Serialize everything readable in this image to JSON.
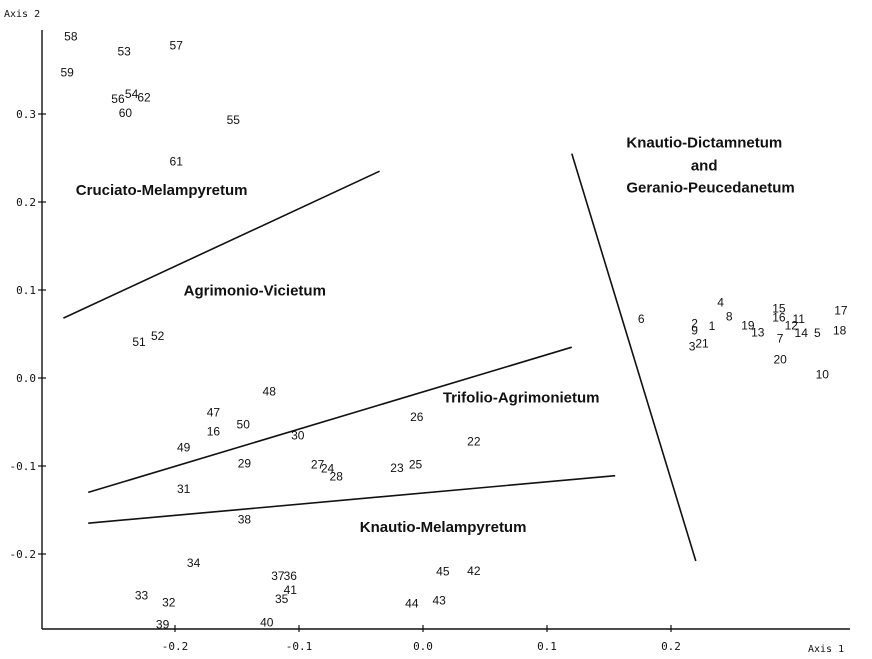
{
  "chart_data": {
    "type": "scatter",
    "xlabel": "Axis 1",
    "ylabel": "Axis 2",
    "xlim": [
      -0.305,
      0.345
    ],
    "ylim": [
      -0.287,
      0.39
    ],
    "grid": false,
    "x_ticks": [
      {
        "value": -0.2,
        "label": "-0.2"
      },
      {
        "value": -0.1,
        "label": "-0.1"
      },
      {
        "value": 0.0,
        "label": "0.0"
      },
      {
        "value": 0.1,
        "label": "0.1"
      },
      {
        "value": 0.2,
        "label": "0.2"
      }
    ],
    "y_ticks": [
      {
        "value": 0.3,
        "label": "0.3"
      },
      {
        "value": 0.2,
        "label": "0.2"
      },
      {
        "value": 0.1,
        "label": "0.1"
      },
      {
        "value": 0.0,
        "label": "0.0"
      },
      {
        "value": -0.1,
        "label": "-0.1"
      },
      {
        "value": -0.2,
        "label": "-0.2"
      }
    ],
    "points": [
      {
        "label": "58",
        "x": -0.284,
        "y": 0.387
      },
      {
        "label": "53",
        "x": -0.241,
        "y": 0.37
      },
      {
        "label": "57",
        "x": -0.199,
        "y": 0.377
      },
      {
        "label": "59",
        "x": -0.287,
        "y": 0.346
      },
      {
        "label": "54",
        "x": -0.235,
        "y": 0.322
      },
      {
        "label": "56",
        "x": -0.246,
        "y": 0.316
      },
      {
        "label": "62",
        "x": -0.225,
        "y": 0.318
      },
      {
        "label": "60",
        "x": -0.24,
        "y": 0.3
      },
      {
        "label": "55",
        "x": -0.153,
        "y": 0.292
      },
      {
        "label": "61",
        "x": -0.199,
        "y": 0.245
      },
      {
        "label": "51",
        "x": -0.229,
        "y": 0.04
      },
      {
        "label": "52",
        "x": -0.214,
        "y": 0.047
      },
      {
        "label": "48",
        "x": -0.124,
        "y": -0.016
      },
      {
        "label": "47",
        "x": -0.169,
        "y": -0.04
      },
      {
        "label": "16",
        "x": -0.169,
        "y": -0.062
      },
      {
        "label": "50",
        "x": -0.145,
        "y": -0.054
      },
      {
        "label": "30",
        "x": -0.101,
        "y": -0.066
      },
      {
        "label": "26",
        "x": -0.005,
        "y": -0.045
      },
      {
        "label": "22",
        "x": 0.041,
        "y": -0.073
      },
      {
        "label": "49",
        "x": -0.193,
        "y": -0.08
      },
      {
        "label": "29",
        "x": -0.144,
        "y": -0.098
      },
      {
        "label": "27",
        "x": -0.085,
        "y": -0.099
      },
      {
        "label": "24",
        "x": -0.077,
        "y": -0.104
      },
      {
        "label": "28",
        "x": -0.07,
        "y": -0.113
      },
      {
        "label": "23",
        "x": -0.021,
        "y": -0.103
      },
      {
        "label": "25",
        "x": -0.006,
        "y": -0.099
      },
      {
        "label": "31",
        "x": -0.193,
        "y": -0.127
      },
      {
        "label": "38",
        "x": -0.144,
        "y": -0.162
      },
      {
        "label": "34",
        "x": -0.185,
        "y": -0.211
      },
      {
        "label": "37",
        "x": -0.117,
        "y": -0.226
      },
      {
        "label": "36",
        "x": -0.107,
        "y": -0.226
      },
      {
        "label": "41",
        "x": -0.107,
        "y": -0.242
      },
      {
        "label": "35",
        "x": -0.114,
        "y": -0.252
      },
      {
        "label": "45",
        "x": 0.016,
        "y": -0.221
      },
      {
        "label": "42",
        "x": 0.041,
        "y": -0.22
      },
      {
        "label": "44",
        "x": -0.009,
        "y": -0.257
      },
      {
        "label": "43",
        "x": 0.013,
        "y": -0.254
      },
      {
        "label": "33",
        "x": -0.227,
        "y": -0.248
      },
      {
        "label": "32",
        "x": -0.205,
        "y": -0.256
      },
      {
        "label": "39",
        "x": -0.21,
        "y": -0.281
      },
      {
        "label": "40",
        "x": -0.126,
        "y": -0.279
      },
      {
        "label": "6",
        "x": 0.176,
        "y": 0.066
      },
      {
        "label": "4",
        "x": 0.24,
        "y": 0.085
      },
      {
        "label": "2",
        "x": 0.219,
        "y": 0.061
      },
      {
        "label": "1",
        "x": 0.233,
        "y": 0.058
      },
      {
        "label": "8",
        "x": 0.247,
        "y": 0.069
      },
      {
        "label": "9",
        "x": 0.219,
        "y": 0.053
      },
      {
        "label": "3",
        "x": 0.217,
        "y": 0.035
      },
      {
        "label": "21",
        "x": 0.225,
        "y": 0.038
      },
      {
        "label": "19",
        "x": 0.262,
        "y": 0.059
      },
      {
        "label": "13",
        "x": 0.27,
        "y": 0.051
      },
      {
        "label": "15",
        "x": 0.287,
        "y": 0.078
      },
      {
        "label": "16",
        "x": 0.287,
        "y": 0.068
      },
      {
        "label": "12",
        "x": 0.297,
        "y": 0.059
      },
      {
        "label": "11",
        "x": 0.303,
        "y": 0.066
      },
      {
        "label": "7",
        "x": 0.288,
        "y": 0.044
      },
      {
        "label": "14",
        "x": 0.305,
        "y": 0.05
      },
      {
        "label": "5",
        "x": 0.318,
        "y": 0.05
      },
      {
        "label": "17",
        "x": 0.337,
        "y": 0.076
      },
      {
        "label": "18",
        "x": 0.336,
        "y": 0.053
      },
      {
        "label": "20",
        "x": 0.288,
        "y": 0.02
      },
      {
        "label": "10",
        "x": 0.322,
        "y": 0.003
      }
    ],
    "annotations": [
      {
        "text": "Cruciato-Melampyretum",
        "x": -0.28,
        "y": 0.208
      },
      {
        "text": "Agrimonio-Vicietum",
        "x": -0.193,
        "y": 0.094
      },
      {
        "text": "Trifolio-Agrimonietum",
        "x": 0.016,
        "y": -0.028
      },
      {
        "text": "Knautio-Melampyretum",
        "x": -0.051,
        "y": -0.175
      },
      {
        "text": "Knautio-Dictamnetum",
        "x": 0.164,
        "y": 0.262
      },
      {
        "text": "and",
        "x": 0.216,
        "y": 0.236
      },
      {
        "text": "Geranio-Peucedanetum",
        "x": 0.164,
        "y": 0.211
      }
    ],
    "boundaries": [
      [
        [
          -0.29,
          0.068
        ],
        [
          -0.035,
          0.235
        ]
      ],
      [
        [
          -0.27,
          -0.13
        ],
        [
          0.12,
          0.035
        ]
      ],
      [
        [
          -0.27,
          -0.165
        ],
        [
          0.155,
          -0.111
        ]
      ],
      [
        [
          0.12,
          0.255
        ],
        [
          0.22,
          -0.208
        ]
      ]
    ]
  }
}
